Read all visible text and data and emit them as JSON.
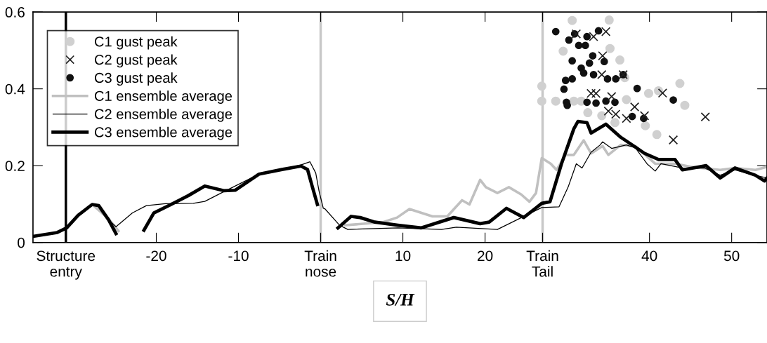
{
  "chart_data": {
    "type": "line",
    "xlabel": "S/H",
    "xlim": [
      -35,
      54.3
    ],
    "ylim": [
      0,
      0.6
    ],
    "xticks": [
      {
        "value": -31,
        "label": "Structure\nentry"
      },
      -20,
      -10,
      {
        "value": 0,
        "label": "Train\nnose"
      },
      10,
      20,
      {
        "value": 27,
        "label": "Train\nTail"
      },
      40,
      50
    ],
    "yticks": [
      0,
      0.2,
      0.4,
      0.6
    ],
    "grid": false,
    "legend": "top left",
    "ref_lines": [
      {
        "axis": "x",
        "value": -31,
        "color": "#000000"
      },
      {
        "axis": "x",
        "value": 0,
        "color": "#c8c8c8"
      },
      {
        "axis": "x",
        "value": 27,
        "color": "#c8c8c8"
      }
    ],
    "series": [
      {
        "name": "C1 gust peak",
        "type": "scatter",
        "marker": "circle",
        "color": "#d0d0d0",
        "x": [
          30.6,
          35.1,
          29.5,
          35.2,
          36.4,
          26.9,
          26.9,
          28.6,
          30.8,
          31.7,
          37.0,
          37.2,
          39.9,
          41.1,
          43.7,
          44.3,
          32.5,
          34.2,
          39.5,
          40.9,
          35.8
        ],
        "values": [
          0.578,
          0.579,
          0.498,
          0.505,
          0.475,
          0.407,
          0.368,
          0.368,
          0.368,
          0.368,
          0.429,
          0.372,
          0.388,
          0.395,
          0.414,
          0.357,
          0.338,
          0.33,
          0.304,
          0.281,
          0.312
        ]
      },
      {
        "name": "C2 gust peak",
        "type": "scatter",
        "marker": "cross",
        "color": "#202020",
        "x": [
          31.1,
          33.2,
          34.7,
          34.3,
          36.8,
          34.2,
          32.9,
          33.5,
          35.4,
          35.0,
          35.9,
          37.2,
          38.2,
          39.4,
          41.6,
          42.9,
          46.8
        ],
        "values": [
          0.543,
          0.536,
          0.549,
          0.486,
          0.437,
          0.437,
          0.388,
          0.388,
          0.38,
          0.342,
          0.334,
          0.323,
          0.353,
          0.33,
          0.389,
          0.267,
          0.327
        ]
      },
      {
        "name": "C3 gust peak",
        "type": "scatter",
        "marker": "circle",
        "color": "#111111",
        "x": [
          28.6,
          30.2,
          30.9,
          31.4,
          32.4,
          32.2,
          33.8,
          30.6,
          33.1,
          32.7,
          31.7,
          32.0,
          33.2,
          34.5,
          34.9,
          35.9,
          36.8,
          29.8,
          30.6,
          29.6,
          38.5,
          29.9,
          30.0,
          32.4,
          33.5,
          34.7,
          35.8,
          37.9,
          39.3,
          42.9
        ],
        "values": [
          0.549,
          0.527,
          0.543,
          0.513,
          0.536,
          0.513,
          0.551,
          0.473,
          0.486,
          0.467,
          0.454,
          0.441,
          0.437,
          0.471,
          0.426,
          0.426,
          0.437,
          0.422,
          0.426,
          0.399,
          0.401,
          0.365,
          0.357,
          0.365,
          0.363,
          0.368,
          0.365,
          0.328,
          0.323,
          0.371
        ]
      },
      {
        "name": "C1 ensemble average",
        "type": "line",
        "color": "#c0c0c0",
        "x": [
          -29.5,
          -27.8,
          -25.8,
          -24.6,
          -21.6,
          -21.3,
          -20.3,
          1.0,
          3.0,
          7.6,
          9.3,
          10.8,
          13.6,
          15.4,
          17.2,
          18.1,
          19.4,
          20.1,
          21.5,
          22.9,
          24.4,
          25.4,
          26.2,
          26.9,
          28.0,
          28.7,
          29.8,
          30.8,
          32.0,
          32.9,
          34.3,
          35.0,
          36.5,
          38.3,
          40.7,
          43.2,
          45.0,
          48.6,
          50.4,
          52.9,
          54.3
        ],
        "values": [
          0.071,
          0.099,
          0.062,
          0.03,
          null,
          0.04,
          0.075,
          null,
          0.045,
          0.053,
          0.065,
          0.087,
          0.068,
          0.068,
          0.11,
          0.099,
          0.163,
          0.144,
          0.129,
          0.144,
          0.125,
          0.106,
          0.129,
          0.22,
          0.205,
          0.189,
          0.228,
          0.228,
          0.266,
          0.232,
          0.251,
          0.228,
          0.254,
          0.251,
          0.205,
          0.205,
          0.197,
          0.189,
          0.194,
          0.189,
          0.197
        ]
      },
      {
        "name": "C2 ensemble average",
        "type": "line",
        "color": "#000000",
        "x": [
          -35,
          -32.05,
          -30.9,
          -29.5,
          -27.8,
          -27.0,
          -25.8,
          -24.9,
          -22.9,
          -21.2,
          -18.9,
          -15.5,
          -14.1,
          -11.8,
          -7.5,
          -4.7,
          -2.4,
          -1.3,
          -0.6,
          -0.2,
          0.32,
          0.5,
          2.3,
          3.3,
          9.4,
          14.7,
          16.5,
          21.5,
          26.9,
          29.0,
          30.1,
          31.1,
          31.8,
          32.9,
          34.0,
          34.3,
          35.4,
          37.2,
          38.3,
          39.7,
          40.7,
          41.4,
          44.3,
          46.7,
          48.6,
          50.4,
          52.2,
          54.3
        ],
        "values": [
          0.016,
          0.026,
          0.038,
          0.071,
          0.099,
          0.096,
          0.059,
          0.041,
          0.077,
          0.096,
          0.101,
          0.102,
          0.107,
          0.132,
          0.178,
          0.19,
          0.202,
          0.21,
          0.181,
          0.134,
          0.089,
          0.088,
          0.045,
          0.034,
          0.038,
          0.034,
          0.04,
          0.034,
          0.091,
          0.093,
          0.144,
          0.205,
          0.194,
          0.235,
          0.254,
          0.262,
          0.245,
          0.254,
          0.246,
          0.205,
          0.186,
          0.205,
          0.193,
          0.194,
          0.175,
          0.189,
          0.178,
          0.168
        ]
      },
      {
        "name": "C3 ensemble average",
        "type": "line",
        "color": "#000000",
        "x": [
          -35,
          -32.05,
          -30.9,
          -29.5,
          -27.8,
          -27.0,
          -25.8,
          -24.9,
          -23.0,
          -21.5,
          -20.3,
          -18.4,
          -16.1,
          -14.1,
          -11.8,
          -10.4,
          -7.5,
          -4.7,
          -2.4,
          -1.6,
          -1.0,
          -0.4,
          1.0,
          2.1,
          3.7,
          4.8,
          6.6,
          9.4,
          12.2,
          16.2,
          19.4,
          20.5,
          22.6,
          24.7,
          26.9,
          27.9,
          29.3,
          30.8,
          31.3,
          32.4,
          32.9,
          34.7,
          36.5,
          37.9,
          39.4,
          41.1,
          43.1,
          44.0,
          46.9,
          48.6,
          50.4,
          52.9,
          54.0,
          54.3
        ],
        "values": [
          0.016,
          0.026,
          0.038,
          0.071,
          0.099,
          0.096,
          0.059,
          0.023,
          null,
          0.032,
          0.077,
          0.097,
          0.122,
          0.147,
          0.135,
          0.136,
          0.178,
          0.19,
          0.199,
          0.19,
          0.144,
          0.099,
          null,
          0.038,
          0.068,
          0.065,
          0.053,
          0.045,
          0.038,
          0.065,
          0.049,
          0.053,
          0.089,
          0.065,
          0.102,
          0.106,
          0.205,
          0.296,
          0.315,
          0.312,
          0.285,
          0.308,
          0.274,
          0.254,
          0.232,
          0.216,
          0.216,
          0.189,
          0.2,
          0.168,
          0.194,
          0.175,
          0.16,
          0.168
        ]
      }
    ]
  }
}
